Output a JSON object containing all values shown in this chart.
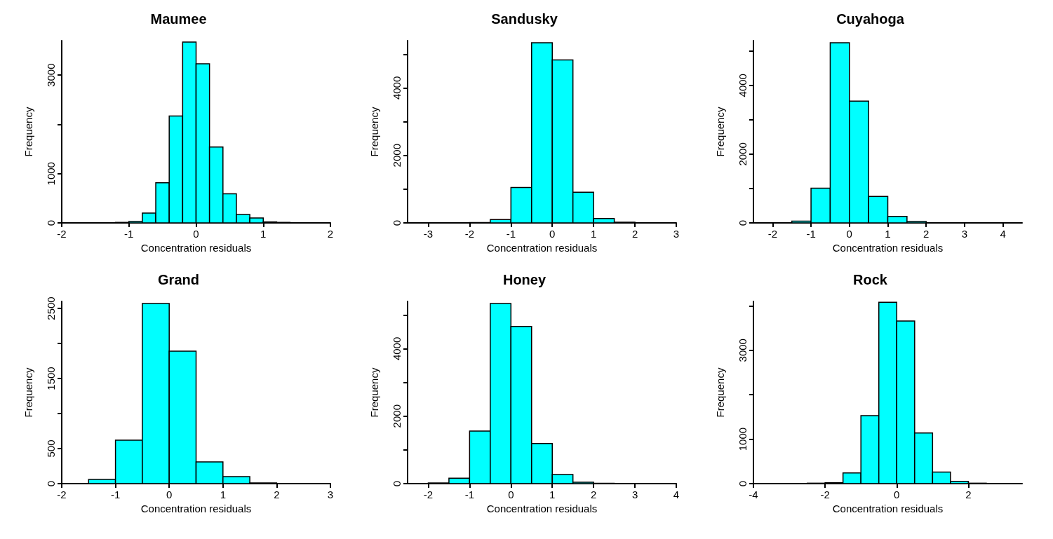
{
  "chart_data": [
    {
      "type": "histogram",
      "title": "Maumee",
      "xlabel": "Concentration residuals",
      "ylabel": "Frequency",
      "color": "#00ffff",
      "bins": [
        -2,
        -1.8,
        -1.6,
        -1.4,
        -1.2,
        -1,
        -0.8,
        -0.6,
        -0.4,
        -0.2,
        0,
        0.2,
        0.4,
        0.6,
        0.8,
        1,
        1.2,
        1.4,
        1.6,
        1.8,
        2
      ],
      "values": [
        0,
        0,
        0,
        0,
        10,
        30,
        200,
        815,
        2170,
        3670,
        3230,
        1540,
        590,
        170,
        100,
        20,
        10,
        0,
        0,
        0
      ],
      "xlim": [
        -2,
        2
      ],
      "xticks": [
        -2,
        -1,
        0,
        1,
        2
      ],
      "ylim": [
        0,
        3700
      ],
      "yticks": [
        0,
        1000,
        {
          "value": 2000,
          "label": null
        },
        3000
      ],
      "grid": false
    },
    {
      "type": "histogram",
      "title": "Sandusky",
      "xlabel": "Concentration residuals",
      "ylabel": "Frequency",
      "color": "#00ffff",
      "bins": [
        -3.5,
        -3,
        -2.5,
        -2,
        -1.5,
        -1,
        -0.5,
        0,
        0.5,
        1,
        1.5,
        2,
        2.5,
        3
      ],
      "values": [
        0,
        0,
        0,
        10,
        100,
        1050,
        5340,
        4830,
        910,
        130,
        20,
        0,
        0
      ],
      "xlim": [
        -3.5,
        3
      ],
      "xticks": [
        -3,
        -2,
        -1,
        0,
        1,
        2,
        3
      ],
      "ylim": [
        0,
        5400
      ],
      "yticks": [
        0,
        {
          "value": 1000,
          "label": null
        },
        2000,
        {
          "value": 3000,
          "label": null
        },
        4000,
        {
          "value": 5000,
          "label": null
        }
      ],
      "grid": false
    },
    {
      "type": "histogram",
      "title": "Cuyahoga",
      "xlabel": "Concentration residuals",
      "ylabel": "Frequency",
      "color": "#00ffff",
      "bins": [
        -2.5,
        -2,
        -1.5,
        -1,
        -0.5,
        0,
        0.5,
        1,
        1.5,
        2,
        2.5,
        3,
        3.5,
        4,
        4.5
      ],
      "values": [
        0,
        0,
        50,
        1010,
        5240,
        3540,
        770,
        190,
        40,
        0,
        0,
        0,
        0,
        0
      ],
      "xlim": [
        -2.5,
        4.5
      ],
      "xticks": [
        -2,
        -1,
        0,
        1,
        2,
        3,
        4
      ],
      "ylim": [
        0,
        5300
      ],
      "yticks": [
        0,
        {
          "value": 1000,
          "label": null
        },
        2000,
        {
          "value": 3000,
          "label": null
        },
        4000,
        {
          "value": 5000,
          "label": null
        }
      ],
      "grid": false
    },
    {
      "type": "histogram",
      "title": "Grand",
      "xlabel": "Concentration residuals",
      "ylabel": "Frequency",
      "color": "#00ffff",
      "bins": [
        -2,
        -1.5,
        -1,
        -0.5,
        0,
        0.5,
        1,
        1.5,
        2,
        2.5,
        3
      ],
      "values": [
        0,
        60,
        620,
        2570,
        1890,
        310,
        100,
        10,
        0,
        0
      ],
      "xlim": [
        -2,
        3
      ],
      "xticks": [
        -2,
        -1,
        0,
        1,
        2,
        3
      ],
      "ylim": [
        0,
        2600
      ],
      "yticks": [
        0,
        500,
        {
          "value": 1000,
          "label": null
        },
        1500,
        {
          "value": 2000,
          "label": null
        },
        2500
      ],
      "grid": false
    },
    {
      "type": "histogram",
      "title": "Honey",
      "xlabel": "Concentration residuals",
      "ylabel": "Frequency",
      "color": "#00ffff",
      "bins": [
        -2.5,
        -2,
        -1.5,
        -1,
        -0.5,
        0,
        0.5,
        1,
        1.5,
        2,
        2.5,
        3,
        3.5,
        4
      ],
      "values": [
        0,
        20,
        160,
        1560,
        5340,
        4660,
        1190,
        270,
        40,
        10,
        0,
        0,
        0
      ],
      "xlim": [
        -2.5,
        4
      ],
      "xticks": [
        -2,
        -1,
        0,
        1,
        2,
        3,
        4
      ],
      "ylim": [
        0,
        5400
      ],
      "yticks": [
        0,
        {
          "value": 1000,
          "label": null
        },
        2000,
        {
          "value": 3000,
          "label": null
        },
        4000,
        {
          "value": 5000,
          "label": null
        }
      ],
      "grid": false
    },
    {
      "type": "histogram",
      "title": "Rock",
      "xlabel": "Concentration residuals",
      "ylabel": "Frequency",
      "color": "#00ffff",
      "bins": [
        -4,
        -3.5,
        -3,
        -2.5,
        -2,
        -1.5,
        -1,
        -0.5,
        0,
        0.5,
        1,
        1.5,
        2,
        2.5,
        3,
        3.5
      ],
      "values": [
        0,
        0,
        0,
        10,
        20,
        240,
        1530,
        4080,
        3660,
        1140,
        260,
        50,
        10,
        0,
        0
      ],
      "xlim": [
        -4,
        3.5
      ],
      "xticks": [
        -4,
        -2,
        0,
        2
      ],
      "ylim": [
        0,
        4100
      ],
      "yticks": [
        0,
        1000,
        {
          "value": 2000,
          "label": null
        },
        3000,
        {
          "value": 4000,
          "label": null
        }
      ],
      "grid": false
    }
  ]
}
